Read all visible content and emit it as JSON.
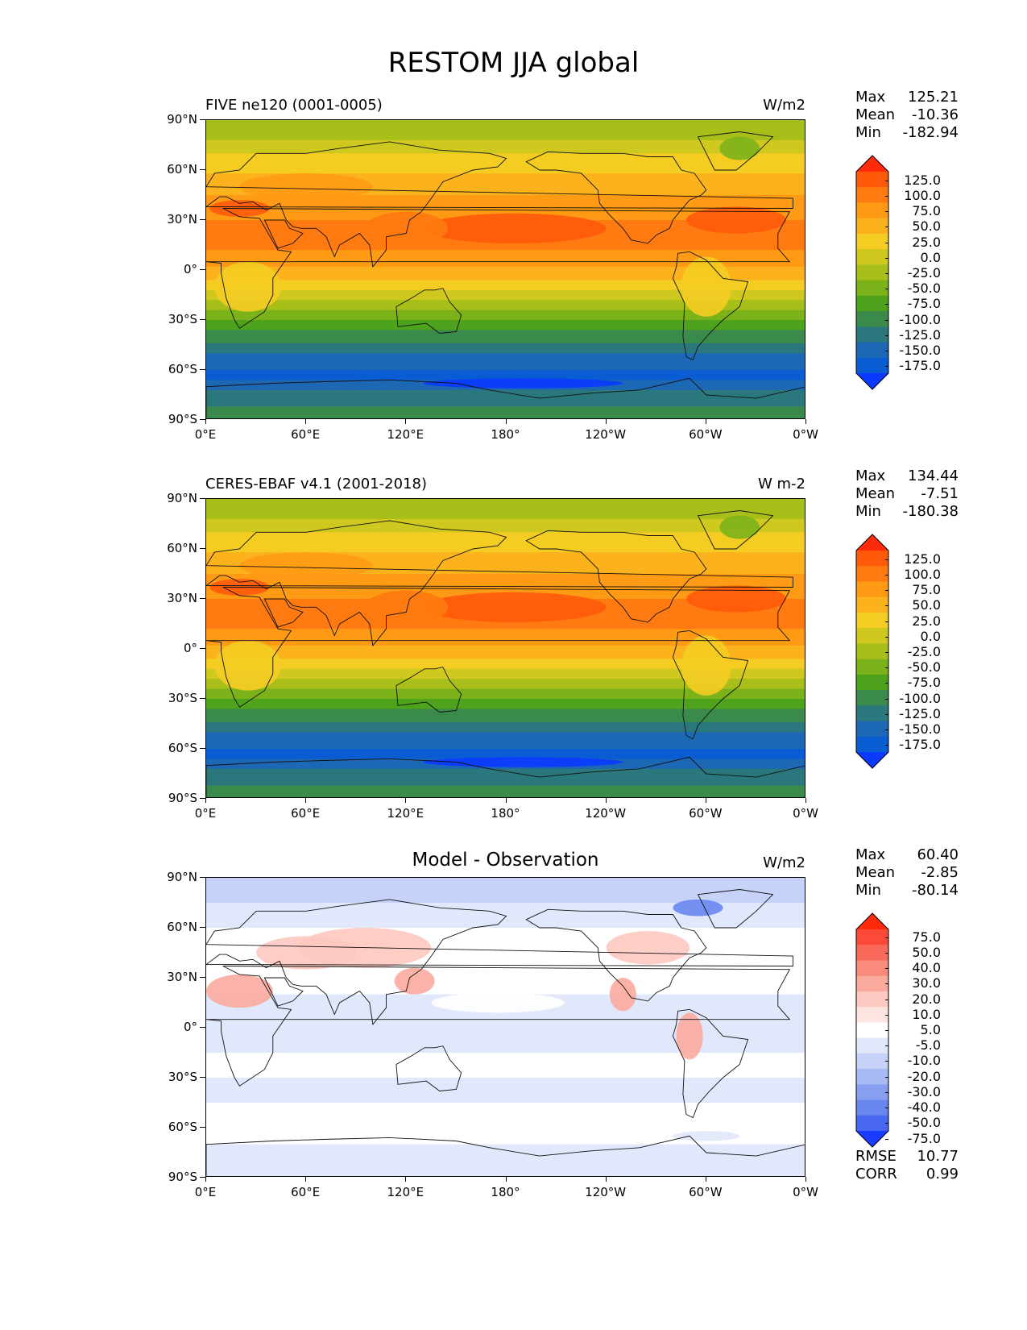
{
  "title": "RESTOM JJA global",
  "axes": {
    "lat_labels": [
      "90°N",
      "60°N",
      "30°N",
      "0°",
      "30°S",
      "60°S",
      "90°S"
    ],
    "lon_labels": [
      "0°E",
      "60°E",
      "120°E",
      "180°",
      "120°W",
      "60°W",
      "0°W"
    ]
  },
  "panels": [
    {
      "left_title": "FIVE ne120 (0001-0005)",
      "center_title": "",
      "units": "W/m2",
      "stats": [
        {
          "label": "Max",
          "value": "125.21"
        },
        {
          "label": "Mean",
          "value": "-10.36"
        },
        {
          "label": "Min",
          "value": "-182.94"
        }
      ],
      "colorbar_labels": [
        "125.0",
        "100.0",
        "75.0",
        "50.0",
        "25.0",
        "0.0",
        "-25.0",
        "-50.0",
        "-75.0",
        "-100.0",
        "-125.0",
        "-150.0",
        "-175.0"
      ],
      "colorbar_colors": [
        "#ff2a0a",
        "#ff5a0a",
        "#ff7a10",
        "#ff9a14",
        "#fcb21c",
        "#f4cc22",
        "#cfc81e",
        "#a8bf1a",
        "#7cb219",
        "#4ea21c",
        "#3a8a4c",
        "#2a787e",
        "#1d68b4",
        "#0a5cd2",
        "#0a3aff"
      ],
      "footer": []
    },
    {
      "left_title": "CERES-EBAF v4.1 (2001-2018)",
      "center_title": "",
      "units": "W m-2",
      "stats": [
        {
          "label": "Max",
          "value": "134.44"
        },
        {
          "label": "Mean",
          "value": "-7.51"
        },
        {
          "label": "Min",
          "value": "-180.38"
        }
      ],
      "colorbar_labels": [
        "125.0",
        "100.0",
        "75.0",
        "50.0",
        "25.0",
        "0.0",
        "-25.0",
        "-50.0",
        "-75.0",
        "-100.0",
        "-125.0",
        "-150.0",
        "-175.0"
      ],
      "colorbar_colors": [
        "#ff2a0a",
        "#ff5a0a",
        "#ff7a10",
        "#ff9a14",
        "#fcb21c",
        "#f4cc22",
        "#cfc81e",
        "#a8bf1a",
        "#7cb219",
        "#4ea21c",
        "#3a8a4c",
        "#2a787e",
        "#1d68b4",
        "#0a5cd2",
        "#0a3aff"
      ],
      "footer": []
    },
    {
      "left_title": "",
      "center_title": "Model - Observation",
      "units": "W/m2",
      "stats": [
        {
          "label": "Max",
          "value": "60.40"
        },
        {
          "label": "Mean",
          "value": "-2.85"
        },
        {
          "label": "Min",
          "value": "-80.14"
        }
      ],
      "colorbar_labels": [
        "75.0",
        "50.0",
        "40.0",
        "30.0",
        "20.0",
        "10.0",
        "5.0",
        "-5.0",
        "-10.0",
        "-20.0",
        "-30.0",
        "-40.0",
        "-50.0",
        "-75.0"
      ],
      "colorbar_colors": [
        "#ff2a0a",
        "#fb4a38",
        "#f96a5a",
        "#f88a7e",
        "#fbaa9e",
        "#fdc8c0",
        "#fee4e0",
        "#ffffff",
        "#e2e8fb",
        "#c6d2f7",
        "#a8baf3",
        "#889ff0",
        "#6886ee",
        "#4868f2",
        "#1a3cff"
      ],
      "footer": [
        {
          "label": "RMSE",
          "value": "10.77"
        },
        {
          "label": "CORR",
          "value": "0.99"
        }
      ]
    }
  ]
}
